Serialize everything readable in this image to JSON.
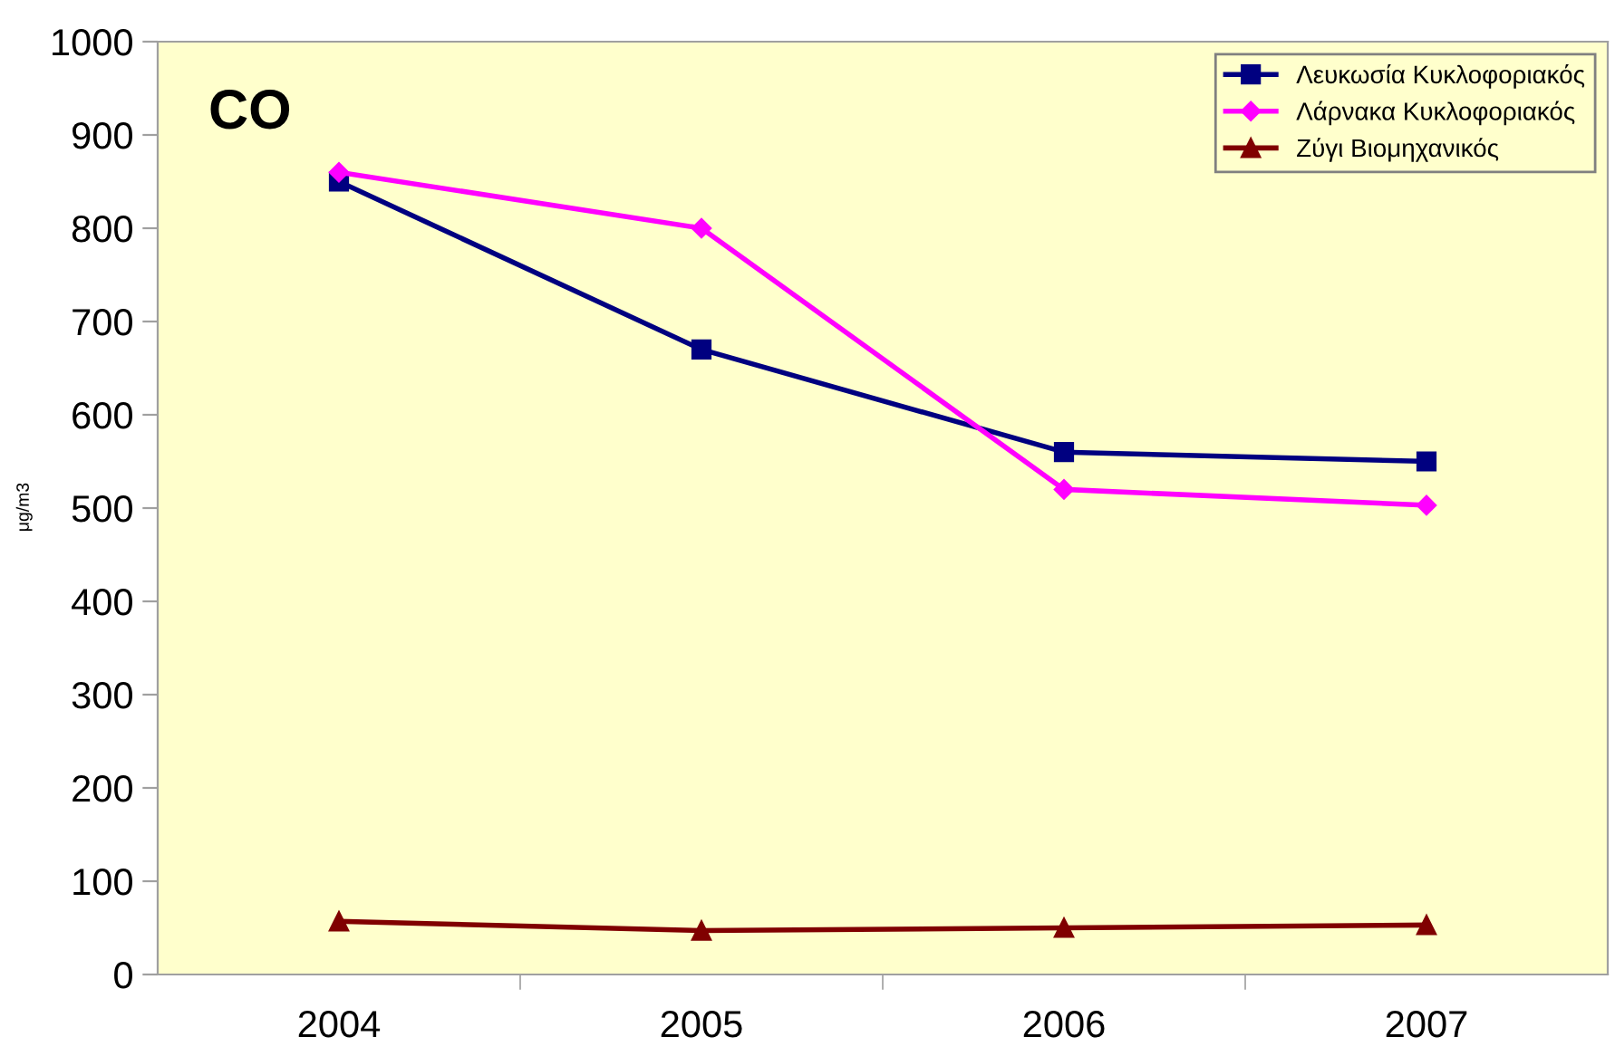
{
  "chart_data": {
    "type": "line",
    "title": "CO",
    "ylabel": "μg/m3",
    "categories": [
      "2004",
      "2005",
      "2006",
      "2007"
    ],
    "series": [
      {
        "name": "Λευκωσία Κυκλοφοριακός",
        "color": "#000080",
        "marker": "square",
        "values": [
          850,
          670,
          560,
          550
        ]
      },
      {
        "name": "Λάρνακα Κυκλοφοριακός",
        "color": "#ff00ff",
        "marker": "diamond",
        "values": [
          860,
          800,
          520,
          503
        ]
      },
      {
        "name": "Ζύγι Βιομηχανικός",
        "color": "#800000",
        "marker": "triangle",
        "values": [
          57,
          47,
          50,
          53
        ]
      }
    ],
    "ylim": [
      0,
      1000
    ],
    "yticks": [
      0,
      100,
      200,
      300,
      400,
      500,
      600,
      700,
      800,
      900,
      1000
    ],
    "grid": false,
    "legend": "top right",
    "line_style": "solid"
  }
}
